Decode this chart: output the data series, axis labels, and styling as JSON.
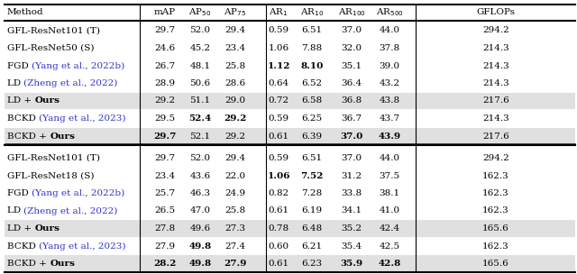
{
  "section1": [
    {
      "method": "GFL-ResNet101 (T)",
      "cite": "",
      "cite_color": "black",
      "ours": false,
      "values": [
        "29.7",
        "52.0",
        "29.4",
        "0.59",
        "6.51",
        "37.0",
        "44.0",
        "294.2"
      ],
      "bold": [],
      "shaded": false
    },
    {
      "method": "GFL-ResNet50 (S)",
      "cite": "",
      "cite_color": "black",
      "ours": false,
      "values": [
        "24.6",
        "45.2",
        "23.4",
        "1.06",
        "7.88",
        "32.0",
        "37.8",
        "214.3"
      ],
      "bold": [],
      "shaded": false
    },
    {
      "method": "FGD ",
      "cite": "(Yang et al., 2022b)",
      "cite_color": "#3333cc",
      "ours": false,
      "values": [
        "26.7",
        "48.1",
        "25.8",
        "1.12",
        "8.10",
        "35.1",
        "39.0",
        "214.3"
      ],
      "bold": [
        3,
        4
      ],
      "shaded": false
    },
    {
      "method": "LD ",
      "cite": "(Zheng et al., 2022)",
      "cite_color": "#3333cc",
      "ours": false,
      "values": [
        "28.9",
        "50.6",
        "28.6",
        "0.64",
        "6.52",
        "36.4",
        "43.2",
        "214.3"
      ],
      "bold": [],
      "shaded": false
    },
    {
      "method": "LD + Ours",
      "cite": "",
      "cite_color": "black",
      "ours": true,
      "values": [
        "29.2",
        "51.1",
        "29.0",
        "0.72",
        "6.58",
        "36.8",
        "43.8",
        "217.6"
      ],
      "bold": [],
      "shaded": true
    },
    {
      "method": "BCKD ",
      "cite": "(Yang et al., 2023)",
      "cite_color": "#3333cc",
      "ours": false,
      "values": [
        "29.5",
        "52.4",
        "29.2",
        "0.59",
        "6.25",
        "36.7",
        "43.7",
        "214.3"
      ],
      "bold": [
        1,
        2
      ],
      "shaded": false
    },
    {
      "method": "BCKD + Ours",
      "cite": "",
      "cite_color": "black",
      "ours": true,
      "values": [
        "29.7",
        "52.1",
        "29.2",
        "0.61",
        "6.39",
        "37.0",
        "43.9",
        "217.6"
      ],
      "bold": [
        0,
        5,
        6
      ],
      "shaded": true
    }
  ],
  "section2": [
    {
      "method": "GFL-ResNet101 (T)",
      "cite": "",
      "cite_color": "black",
      "ours": false,
      "values": [
        "29.7",
        "52.0",
        "29.4",
        "0.59",
        "6.51",
        "37.0",
        "44.0",
        "294.2"
      ],
      "bold": [],
      "shaded": false
    },
    {
      "method": "GFL-ResNet18 (S)",
      "cite": "",
      "cite_color": "black",
      "ours": false,
      "values": [
        "23.4",
        "43.6",
        "22.0",
        "1.06",
        "7.52",
        "31.2",
        "37.5",
        "162.3"
      ],
      "bold": [
        3,
        4
      ],
      "shaded": false
    },
    {
      "method": "FGD ",
      "cite": "(Yang et al., 2022b)",
      "cite_color": "#3333cc",
      "ours": false,
      "values": [
        "25.7",
        "46.3",
        "24.9",
        "0.82",
        "7.28",
        "33.8",
        "38.1",
        "162.3"
      ],
      "bold": [],
      "shaded": false
    },
    {
      "method": "LD ",
      "cite": "(Zheng et al., 2022)",
      "cite_color": "#3333cc",
      "ours": false,
      "values": [
        "26.5",
        "47.0",
        "25.8",
        "0.61",
        "6.19",
        "34.1",
        "41.0",
        "162.3"
      ],
      "bold": [],
      "shaded": false
    },
    {
      "method": "LD + Ours",
      "cite": "",
      "cite_color": "black",
      "ours": true,
      "values": [
        "27.8",
        "49.6",
        "27.3",
        "0.78",
        "6.48",
        "35.2",
        "42.4",
        "165.6"
      ],
      "bold": [],
      "shaded": true
    },
    {
      "method": "BCKD ",
      "cite": "(Yang et al., 2023)",
      "cite_color": "#3333cc",
      "ours": false,
      "values": [
        "27.9",
        "49.8",
        "27.4",
        "0.60",
        "6.21",
        "35.4",
        "42.5",
        "162.3"
      ],
      "bold": [
        1
      ],
      "shaded": false
    },
    {
      "method": "BCKD + Ours",
      "cite": "",
      "cite_color": "black",
      "ours": true,
      "values": [
        "28.2",
        "49.8",
        "27.9",
        "0.61",
        "6.23",
        "35.9",
        "42.8",
        "165.6"
      ],
      "bold": [
        0,
        1,
        2,
        5,
        6
      ],
      "shaded": true
    }
  ],
  "shade_color": "#e0e0e0",
  "method_prefixes": {
    "LD + Ours": [
      "LD + ",
      "Ours"
    ],
    "BCKD + Ours": [
      "BCKD + ",
      "Ours"
    ]
  }
}
